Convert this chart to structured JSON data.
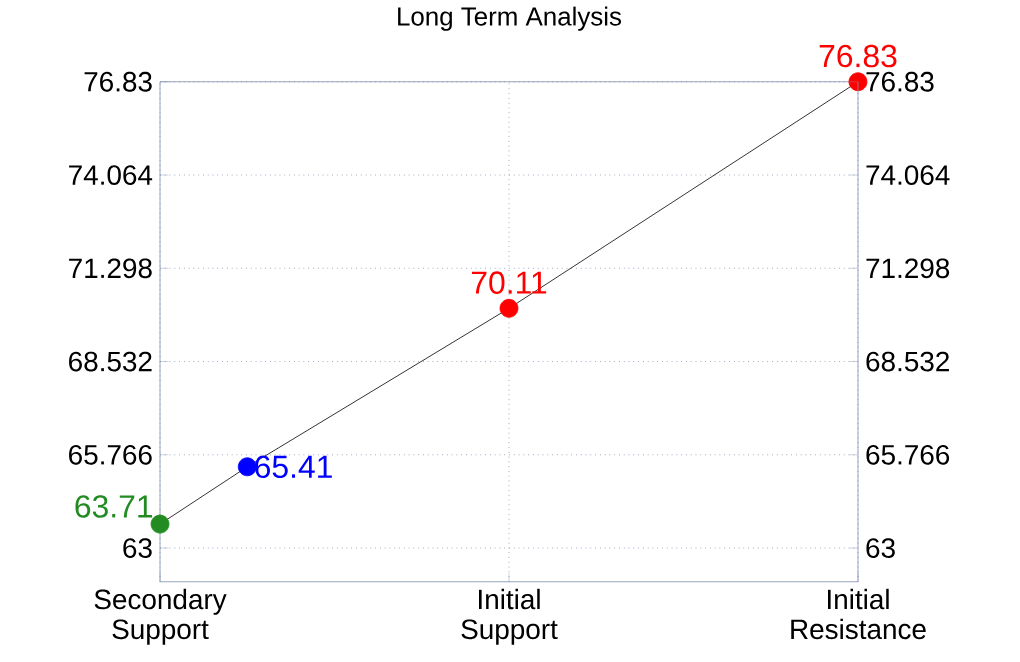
{
  "chart_data": {
    "type": "line",
    "title": "Long Term Analysis",
    "categories": [
      "Secondary Support",
      null,
      null,
      null,
      "Initial Support",
      null,
      null,
      null,
      "Initial Resistance"
    ],
    "series": [
      {
        "color": "#000000",
        "colors": [
          "#228b22",
          "#0000ff",
          null,
          null,
          "#ff0000",
          null,
          null,
          null,
          "#ff0000"
        ],
        "values": [
          63.71,
          65.41,
          null,
          null,
          70.11,
          null,
          null,
          null,
          76.83
        ]
      }
    ],
    "ylim": [
      62,
      76.83
    ],
    "yticks": [
      63,
      65.766,
      68.532,
      71.298,
      74.064,
      76.83
    ],
    "y2lim": [
      62,
      76.83
    ],
    "y2ticks": [
      63,
      65.766,
      68.532,
      71.298,
      74.064,
      76.83
    ],
    "grid": true,
    "marker": "circle",
    "data_labels": true
  }
}
